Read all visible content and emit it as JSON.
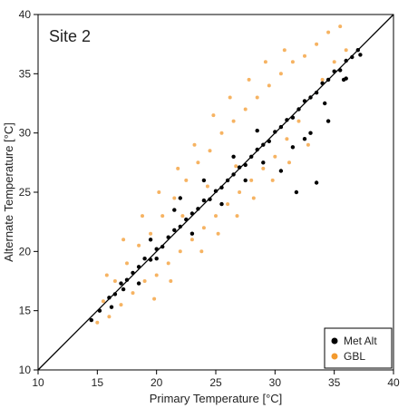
{
  "chart_data": {
    "type": "scatter",
    "annotation": "Site 2",
    "xlabel": "Primary Temperature [°C]",
    "ylabel": "Alternate Temperature [°C]",
    "xlim": [
      10,
      40
    ],
    "ylim": [
      10,
      40
    ],
    "xticks": [
      10,
      15,
      20,
      25,
      30,
      35,
      40
    ],
    "yticks": [
      10,
      15,
      20,
      25,
      30,
      35,
      40
    ],
    "reference_line": "1:1",
    "grid": false,
    "legend_position": "bottom-right",
    "series": [
      {
        "name": "Met Alt",
        "color": "#000000",
        "points": [
          [
            14.5,
            14.2
          ],
          [
            15.2,
            15.0
          ],
          [
            16.0,
            16.1
          ],
          [
            16.5,
            16.4
          ],
          [
            17.0,
            17.3
          ],
          [
            17.5,
            17.6
          ],
          [
            18.0,
            18.2
          ],
          [
            18.5,
            18.7
          ],
          [
            19.0,
            19.4
          ],
          [
            19.5,
            19.3
          ],
          [
            20.0,
            20.2
          ],
          [
            20.5,
            20.4
          ],
          [
            21.0,
            21.2
          ],
          [
            21.5,
            21.8
          ],
          [
            22.0,
            22.1
          ],
          [
            22.5,
            22.7
          ],
          [
            23.0,
            23.2
          ],
          [
            23.5,
            23.6
          ],
          [
            24.0,
            24.3
          ],
          [
            24.5,
            24.4
          ],
          [
            25.0,
            25.1
          ],
          [
            25.5,
            25.4
          ],
          [
            26.0,
            26.0
          ],
          [
            26.5,
            26.5
          ],
          [
            27.0,
            27.1
          ],
          [
            27.5,
            27.3
          ],
          [
            28.0,
            28.0
          ],
          [
            28.5,
            28.6
          ],
          [
            29.0,
            29.0
          ],
          [
            29.5,
            29.3
          ],
          [
            30.0,
            30.1
          ],
          [
            30.5,
            30.5
          ],
          [
            31.0,
            31.1
          ],
          [
            31.5,
            31.3
          ],
          [
            32.0,
            32.0
          ],
          [
            32.5,
            32.7
          ],
          [
            33.0,
            33.0
          ],
          [
            33.5,
            33.4
          ],
          [
            34.0,
            34.2
          ],
          [
            34.5,
            34.5
          ],
          [
            35.0,
            35.2
          ],
          [
            35.5,
            35.3
          ],
          [
            36.0,
            36.1
          ],
          [
            36.5,
            36.4
          ],
          [
            37.0,
            37.0
          ],
          [
            37.2,
            36.6
          ],
          [
            35.8,
            34.5
          ],
          [
            34.2,
            32.5
          ],
          [
            32.5,
            29.5
          ],
          [
            31.8,
            25.0
          ],
          [
            33.5,
            25.8
          ],
          [
            30.5,
            26.8
          ],
          [
            29.0,
            27.5
          ],
          [
            31.5,
            28.8
          ],
          [
            33.0,
            30.0
          ],
          [
            34.5,
            31.0
          ],
          [
            36.0,
            34.6
          ],
          [
            20.0,
            19.4
          ],
          [
            18.5,
            17.3
          ],
          [
            17.2,
            16.8
          ],
          [
            21.5,
            23.5
          ],
          [
            24.0,
            26.0
          ],
          [
            22.0,
            24.5
          ],
          [
            19.5,
            21.0
          ],
          [
            26.5,
            28.0
          ],
          [
            28.5,
            30.2
          ],
          [
            16.2,
            15.3
          ],
          [
            23.0,
            21.5
          ],
          [
            25.5,
            24.0
          ],
          [
            27.5,
            26.0
          ]
        ]
      },
      {
        "name": "GBL",
        "color": "#f39a2e",
        "points": [
          [
            15.0,
            14.0
          ],
          [
            15.5,
            15.8
          ],
          [
            16.0,
            14.5
          ],
          [
            16.5,
            17.5
          ],
          [
            17.0,
            15.5
          ],
          [
            17.5,
            19.0
          ],
          [
            18.0,
            16.5
          ],
          [
            18.5,
            20.5
          ],
          [
            19.0,
            17.5
          ],
          [
            19.5,
            21.5
          ],
          [
            20.0,
            18.0
          ],
          [
            20.5,
            23.0
          ],
          [
            21.0,
            19.0
          ],
          [
            21.5,
            24.5
          ],
          [
            22.0,
            20.0
          ],
          [
            22.5,
            26.0
          ],
          [
            23.0,
            21.0
          ],
          [
            23.5,
            27.5
          ],
          [
            24.0,
            22.0
          ],
          [
            24.5,
            28.5
          ],
          [
            25.0,
            23.0
          ],
          [
            25.5,
            30.0
          ],
          [
            26.0,
            24.0
          ],
          [
            26.5,
            31.0
          ],
          [
            27.0,
            25.0
          ],
          [
            27.5,
            32.0
          ],
          [
            28.0,
            26.0
          ],
          [
            28.5,
            33.0
          ],
          [
            29.0,
            27.0
          ],
          [
            29.5,
            34.0
          ],
          [
            30.0,
            28.0
          ],
          [
            30.5,
            35.0
          ],
          [
            31.0,
            29.5
          ],
          [
            31.5,
            36.0
          ],
          [
            32.0,
            31.0
          ],
          [
            32.5,
            36.5
          ],
          [
            33.0,
            33.0
          ],
          [
            33.5,
            37.5
          ],
          [
            34.0,
            34.5
          ],
          [
            34.5,
            38.5
          ],
          [
            35.0,
            36.0
          ],
          [
            35.5,
            39.0
          ],
          [
            36.0,
            37.0
          ],
          [
            15.8,
            18.0
          ],
          [
            17.2,
            21.0
          ],
          [
            18.8,
            23.0
          ],
          [
            20.2,
            25.0
          ],
          [
            21.8,
            27.0
          ],
          [
            23.2,
            29.0
          ],
          [
            24.8,
            31.5
          ],
          [
            26.2,
            33.0
          ],
          [
            27.8,
            34.5
          ],
          [
            29.2,
            36.0
          ],
          [
            30.8,
            37.0
          ],
          [
            19.8,
            16.0
          ],
          [
            21.2,
            17.5
          ],
          [
            23.8,
            20.0
          ],
          [
            25.2,
            21.5
          ],
          [
            26.8,
            23.0
          ],
          [
            28.2,
            24.5
          ],
          [
            29.8,
            26.0
          ],
          [
            31.2,
            27.5
          ],
          [
            32.8,
            29.0
          ],
          [
            24.3,
            25.5
          ],
          [
            26.7,
            27.2
          ],
          [
            22.2,
            23.0
          ]
        ]
      }
    ]
  }
}
